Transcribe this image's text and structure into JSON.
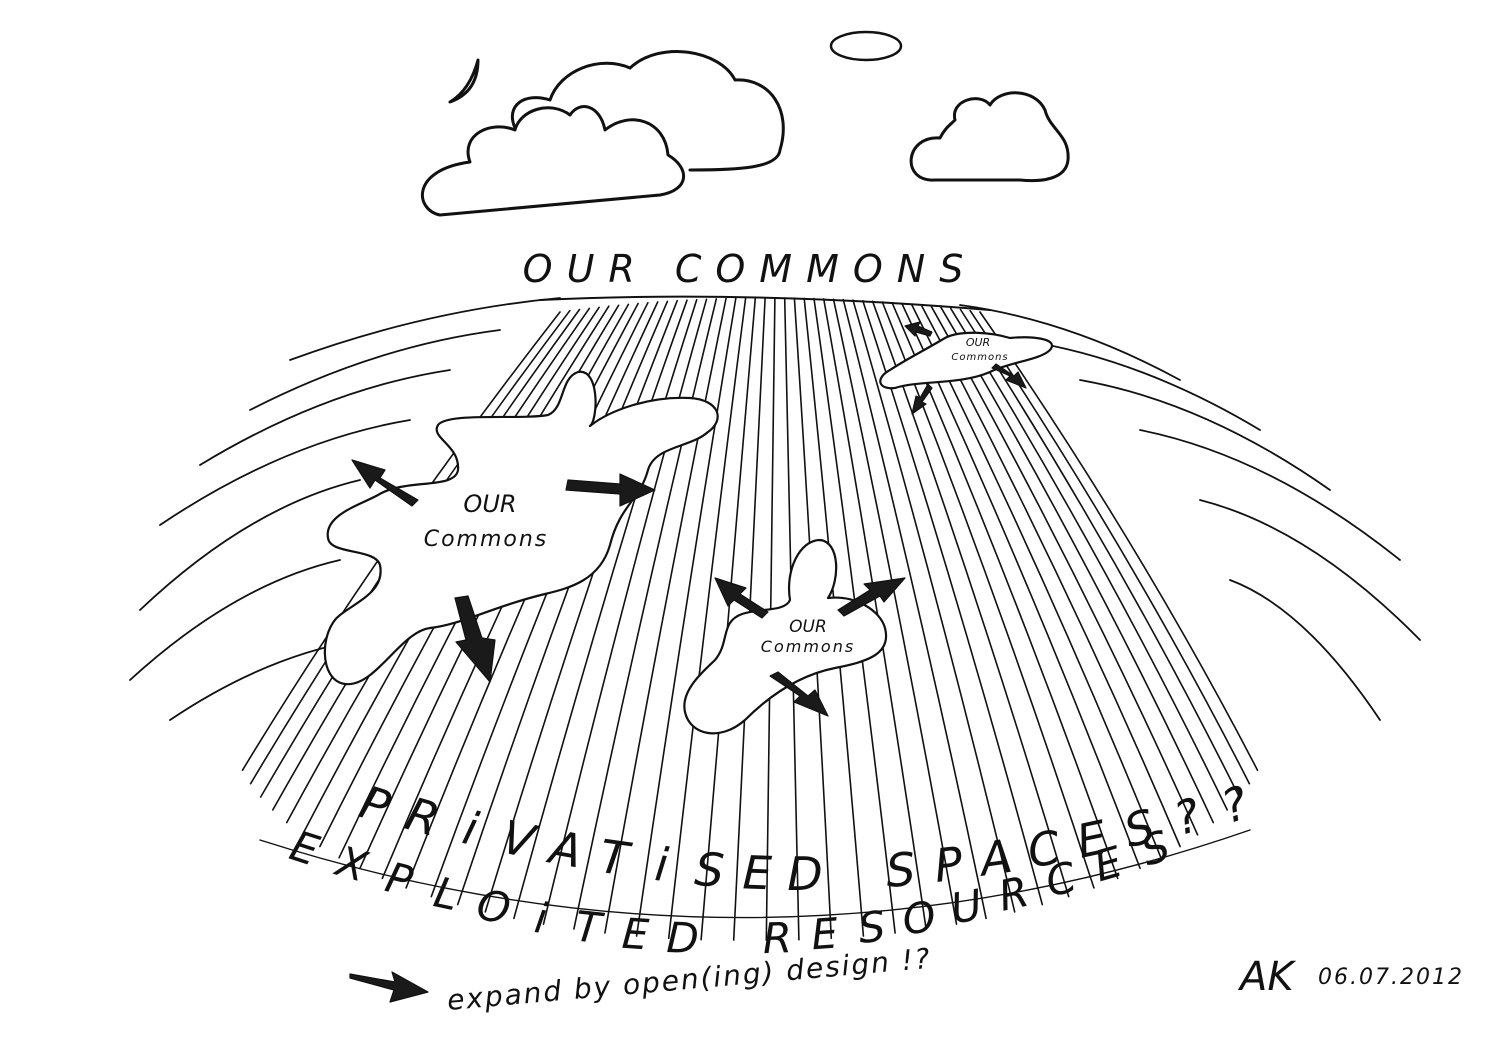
{
  "sky_title": "OUR COMMONS",
  "commons_label": [
    "OUR",
    "COMMONS"
  ],
  "commons_label_lower": [
    "OUR",
    "Commons"
  ],
  "privatised_line": [
    "P",
    "R",
    "i",
    "V",
    "A",
    "T",
    "i",
    "S",
    "E",
    "D",
    " ",
    "S",
    "P",
    "A",
    "C",
    "E",
    "S",
    "?",
    "?"
  ],
  "exploited_line": [
    "E",
    "X",
    "P",
    "L",
    "O",
    "i",
    "T",
    "E",
    "D",
    " ",
    "R",
    "E",
    "S",
    "O",
    "U",
    "R",
    "C",
    "E",
    "S"
  ],
  "legend_text": "expand by open(ing) design !?",
  "signature": "AK",
  "date": "06.07.2012",
  "icons": [
    "moon-icon",
    "sun-icon",
    "cloud-icon",
    "arrow-icon"
  ],
  "colors": {
    "ink": "#111111",
    "paper": "#ffffff"
  }
}
